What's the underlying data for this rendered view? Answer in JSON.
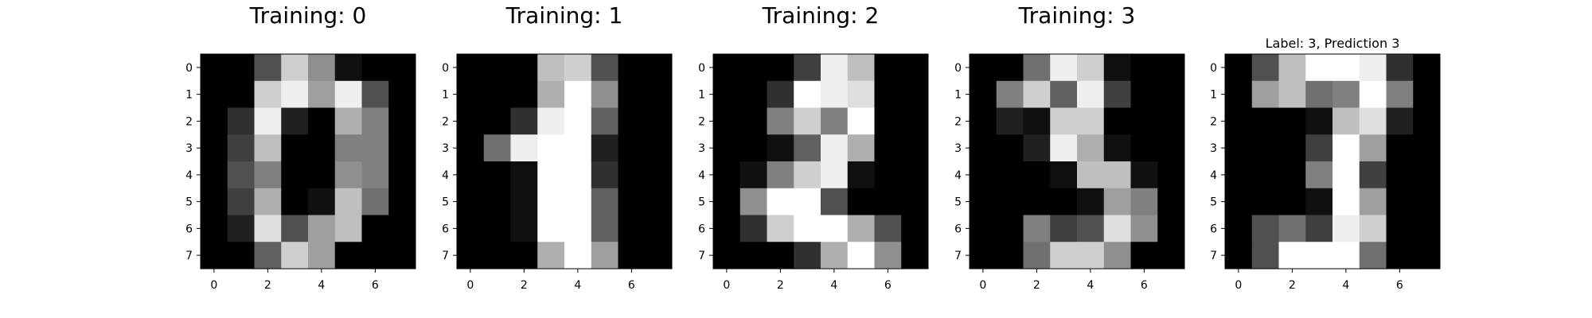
{
  "chart_data": [
    {
      "type": "heatmap",
      "title": "Training: 0",
      "colormap": "gray",
      "vmin": 0,
      "vmax": 16,
      "x_ticks": [
        0,
        2,
        4,
        6
      ],
      "y_ticks": [
        0,
        1,
        2,
        3,
        4,
        5,
        6,
        7
      ],
      "matrix": [
        [
          0,
          0,
          5,
          13,
          9,
          1,
          0,
          0
        ],
        [
          0,
          0,
          13,
          15,
          10,
          15,
          5,
          0
        ],
        [
          0,
          3,
          15,
          2,
          0,
          11,
          8,
          0
        ],
        [
          0,
          4,
          12,
          0,
          0,
          8,
          8,
          0
        ],
        [
          0,
          5,
          8,
          0,
          0,
          9,
          8,
          0
        ],
        [
          0,
          4,
          11,
          0,
          1,
          12,
          7,
          0
        ],
        [
          0,
          2,
          14,
          5,
          10,
          12,
          0,
          0
        ],
        [
          0,
          0,
          6,
          13,
          10,
          0,
          0,
          0
        ]
      ]
    },
    {
      "type": "heatmap",
      "title": "Training: 1",
      "colormap": "gray",
      "vmin": 0,
      "vmax": 16,
      "x_ticks": [
        0,
        2,
        4,
        6
      ],
      "y_ticks": [
        0,
        1,
        2,
        3,
        4,
        5,
        6,
        7
      ],
      "matrix": [
        [
          0,
          0,
          0,
          12,
          13,
          5,
          0,
          0
        ],
        [
          0,
          0,
          0,
          11,
          16,
          9,
          0,
          0
        ],
        [
          0,
          0,
          3,
          15,
          16,
          6,
          0,
          0
        ],
        [
          0,
          7,
          15,
          16,
          16,
          2,
          0,
          0
        ],
        [
          0,
          0,
          1,
          16,
          16,
          3,
          0,
          0
        ],
        [
          0,
          0,
          1,
          16,
          16,
          6,
          0,
          0
        ],
        [
          0,
          0,
          1,
          16,
          16,
          6,
          0,
          0
        ],
        [
          0,
          0,
          0,
          11,
          16,
          10,
          0,
          0
        ]
      ]
    },
    {
      "type": "heatmap",
      "title": "Training: 2",
      "colormap": "gray",
      "vmin": 0,
      "vmax": 16,
      "x_ticks": [
        0,
        2,
        4,
        6
      ],
      "y_ticks": [
        0,
        1,
        2,
        3,
        4,
        5,
        6,
        7
      ],
      "matrix": [
        [
          0,
          0,
          0,
          4,
          15,
          12,
          0,
          0
        ],
        [
          0,
          0,
          3,
          16,
          15,
          14,
          0,
          0
        ],
        [
          0,
          0,
          8,
          13,
          8,
          16,
          0,
          0
        ],
        [
          0,
          0,
          1,
          6,
          15,
          11,
          0,
          0
        ],
        [
          0,
          1,
          8,
          13,
          15,
          1,
          0,
          0
        ],
        [
          0,
          9,
          16,
          16,
          5,
          0,
          0,
          0
        ],
        [
          0,
          3,
          13,
          16,
          16,
          11,
          5,
          0
        ],
        [
          0,
          0,
          0,
          3,
          11,
          16,
          9,
          0
        ]
      ]
    },
    {
      "type": "heatmap",
      "title": "Training: 3",
      "colormap": "gray",
      "vmin": 0,
      "vmax": 16,
      "x_ticks": [
        0,
        2,
        4,
        6
      ],
      "y_ticks": [
        0,
        1,
        2,
        3,
        4,
        5,
        6,
        7
      ],
      "matrix": [
        [
          0,
          0,
          7,
          15,
          13,
          1,
          0,
          0
        ],
        [
          0,
          8,
          13,
          6,
          15,
          4,
          0,
          0
        ],
        [
          0,
          2,
          1,
          13,
          13,
          0,
          0,
          0
        ],
        [
          0,
          0,
          2,
          15,
          11,
          1,
          0,
          0
        ],
        [
          0,
          0,
          0,
          1,
          12,
          12,
          1,
          0
        ],
        [
          0,
          0,
          0,
          0,
          1,
          10,
          8,
          0
        ],
        [
          0,
          0,
          8,
          4,
          5,
          14,
          9,
          0
        ],
        [
          0,
          0,
          7,
          13,
          13,
          9,
          0,
          0
        ]
      ]
    },
    {
      "type": "heatmap",
      "title": "Label: 3, Prediction 3",
      "colormap": "gray",
      "vmin": 0,
      "vmax": 16,
      "x_ticks": [
        0,
        2,
        4,
        6
      ],
      "y_ticks": [
        0,
        1,
        2,
        3,
        4,
        5,
        6,
        7
      ],
      "matrix": [
        [
          0,
          5,
          12,
          16,
          16,
          15,
          3,
          0
        ],
        [
          0,
          10,
          12,
          7,
          8,
          16,
          8,
          0
        ],
        [
          0,
          0,
          0,
          1,
          12,
          14,
          2,
          0
        ],
        [
          0,
          0,
          0,
          4,
          16,
          10,
          0,
          0
        ],
        [
          0,
          0,
          0,
          8,
          16,
          4,
          0,
          0
        ],
        [
          0,
          0,
          0,
          1,
          16,
          10,
          0,
          0
        ],
        [
          0,
          5,
          7,
          4,
          15,
          13,
          0,
          0
        ],
        [
          0,
          5,
          16,
          16,
          16,
          7,
          0,
          0
        ]
      ]
    }
  ]
}
